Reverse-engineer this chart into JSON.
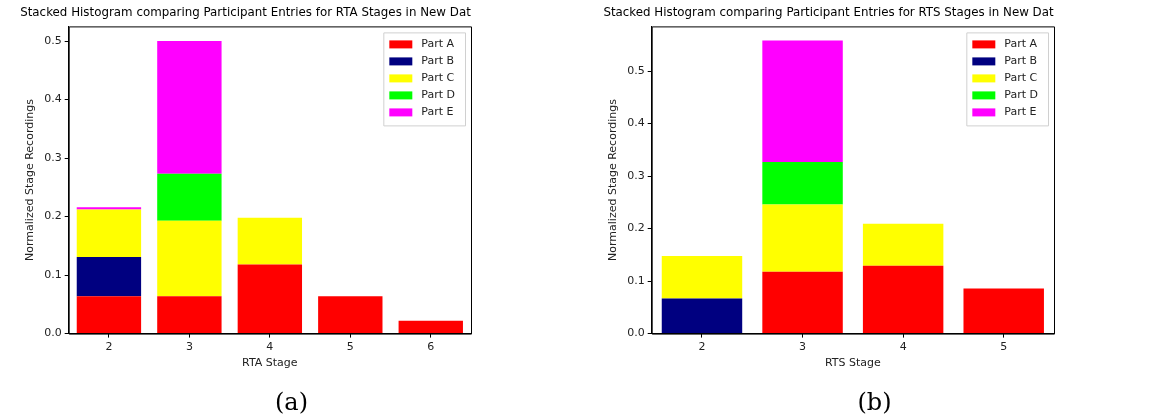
{
  "chart_data": [
    {
      "type": "bar",
      "title": "Stacked Histogram comparing Participant Entries for RTA Stages in New Dat",
      "xlabel": "RTA Stage",
      "ylabel": "Normalized Stage Recordings",
      "categories": [
        "2",
        "3",
        "4",
        "5",
        "6"
      ],
      "stacked": true,
      "ylim": [
        0,
        0.525
      ],
      "yticks": [
        {
          "value": 0,
          "label": "0.0"
        },
        0.1,
        0.2,
        0.3,
        0.4,
        0.5
      ],
      "grid": false,
      "legend": "top right",
      "annotations": [
        "(a)"
      ],
      "series": [
        {
          "name": "Part A",
          "color": "#ff0000",
          "values": [
            0.064,
            0.064,
            0.118,
            0.064,
            0.022
          ]
        },
        {
          "name": "Part B",
          "color": "#000080",
          "values": [
            0.067,
            null,
            null,
            null,
            null
          ]
        },
        {
          "name": "Part C",
          "color": "#ffff00",
          "values": [
            0.081,
            0.129,
            0.08,
            null,
            null
          ]
        },
        {
          "name": "Part D",
          "color": "#00ff00",
          "values": [
            null,
            0.08,
            null,
            null,
            null
          ]
        },
        {
          "name": "Part E",
          "color": "#ff00ff",
          "values": [
            0.004,
            0.227,
            null,
            null,
            null
          ]
        }
      ]
    },
    {
      "type": "bar",
      "title": "Stacked Histogram comparing Participant Entries for RTS Stages in New Dat",
      "xlabel": "RTS Stage",
      "ylabel": "Normalized Stage Recordings",
      "categories": [
        "2",
        "3",
        "4",
        "5"
      ],
      "stacked": true,
      "ylim": [
        0,
        0.585
      ],
      "yticks": [
        {
          "value": 0,
          "label": "0.0"
        },
        0.1,
        0.2,
        0.3,
        0.4,
        0.5
      ],
      "grid": false,
      "legend": "top right",
      "annotations": [
        "(b)"
      ],
      "series": [
        {
          "name": "Part A",
          "color": "#ff0000",
          "values": [
            null,
            0.118,
            0.129,
            0.086
          ]
        },
        {
          "name": "Part B",
          "color": "#000080",
          "values": [
            0.067,
            null,
            null,
            null
          ]
        },
        {
          "name": "Part C",
          "color": "#ffff00",
          "values": [
            0.081,
            0.128,
            0.08,
            null
          ]
        },
        {
          "name": "Part D",
          "color": "#00ff00",
          "values": [
            null,
            0.081,
            null,
            null
          ]
        },
        {
          "name": "Part E",
          "color": "#ff00ff",
          "values": [
            null,
            0.231,
            null,
            null
          ]
        }
      ]
    }
  ]
}
